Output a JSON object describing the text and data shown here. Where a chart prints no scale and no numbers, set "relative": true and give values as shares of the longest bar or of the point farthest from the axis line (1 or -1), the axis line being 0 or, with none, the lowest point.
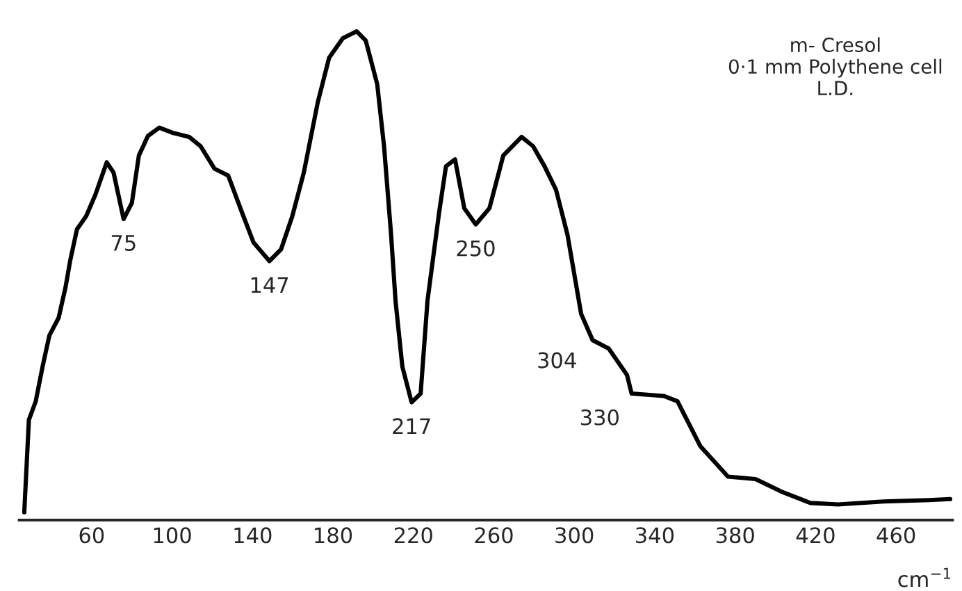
{
  "chart_data": {
    "type": "line",
    "relative": true,
    "xlabel": "cm$^{−1}$",
    "xlim": [
      24,
      488
    ],
    "xticks": [
      60,
      100,
      140,
      180,
      220,
      260,
      300,
      340,
      380,
      420,
      460
    ],
    "tick_labels": "x",
    "grid": false,
    "legend": false,
    "x": [
      26.5,
      28.8,
      32.2,
      35.6,
      39.0,
      43.6,
      47.0,
      49.3,
      52.7,
      57.3,
      61.8,
      67.5,
      70.9,
      75.9,
      80.0,
      83.5,
      88.0,
      93.7,
      100.6,
      108.5,
      114.2,
      121.1,
      127.9,
      134.7,
      140.5,
      148.4,
      154.2,
      159.8,
      165.5,
      172.4,
      176.9,
      178.1,
      184.9,
      191.8,
      196.3,
      202.0,
      205.4,
      208.9,
      211.1,
      214.5,
      219.1,
      223.6,
      227.0,
      232.8,
      236.2,
      240.7,
      245.3,
      251.0,
      257.8,
      264.7,
      273.8,
      279.5,
      285.2,
      290.9,
      296.6,
      303.4,
      309.1,
      317.1,
      326.2,
      328.5,
      344.4,
      351.3,
      362.7,
      376.4,
      390.1,
      403.7,
      417.4,
      431.1,
      453.8,
      476.6,
      486.9
    ],
    "series": [
      {
        "color": "#000000",
        "values": [
          0.016,
          0.205,
          0.243,
          0.314,
          0.378,
          0.414,
          0.476,
          0.53,
          0.595,
          0.622,
          0.665,
          0.732,
          0.711,
          0.616,
          0.649,
          0.746,
          0.786,
          0.803,
          0.792,
          0.784,
          0.765,
          0.719,
          0.705,
          0.63,
          0.568,
          0.53,
          0.554,
          0.622,
          0.711,
          0.854,
          0.927,
          0.946,
          0.986,
          1.0,
          0.981,
          0.892,
          0.765,
          0.584,
          0.449,
          0.314,
          0.241,
          0.259,
          0.449,
          0.63,
          0.724,
          0.738,
          0.638,
          0.605,
          0.638,
          0.746,
          0.784,
          0.765,
          0.724,
          0.676,
          0.584,
          0.422,
          0.368,
          0.351,
          0.297,
          0.259,
          0.254,
          0.243,
          0.151,
          0.089,
          0.084,
          0.057,
          0.035,
          0.032,
          0.038,
          0.041,
          0.043
        ]
      }
    ],
    "annotations": [
      {
        "text": "75",
        "x": 75.9,
        "y": 0.616
      },
      {
        "text": "147",
        "x": 148.4,
        "y": 0.53
      },
      {
        "text": "217",
        "x": 219.1,
        "y": 0.241
      },
      {
        "text": "250",
        "x": 251.0,
        "y": 0.605
      },
      {
        "text": "304",
        "x": 309.1,
        "y": 0.368
      },
      {
        "text": "330",
        "x": 328.5,
        "y": 0.259
      },
      "m- Cresol\n0·1 mm Polythene cell\nL.D."
    ]
  }
}
